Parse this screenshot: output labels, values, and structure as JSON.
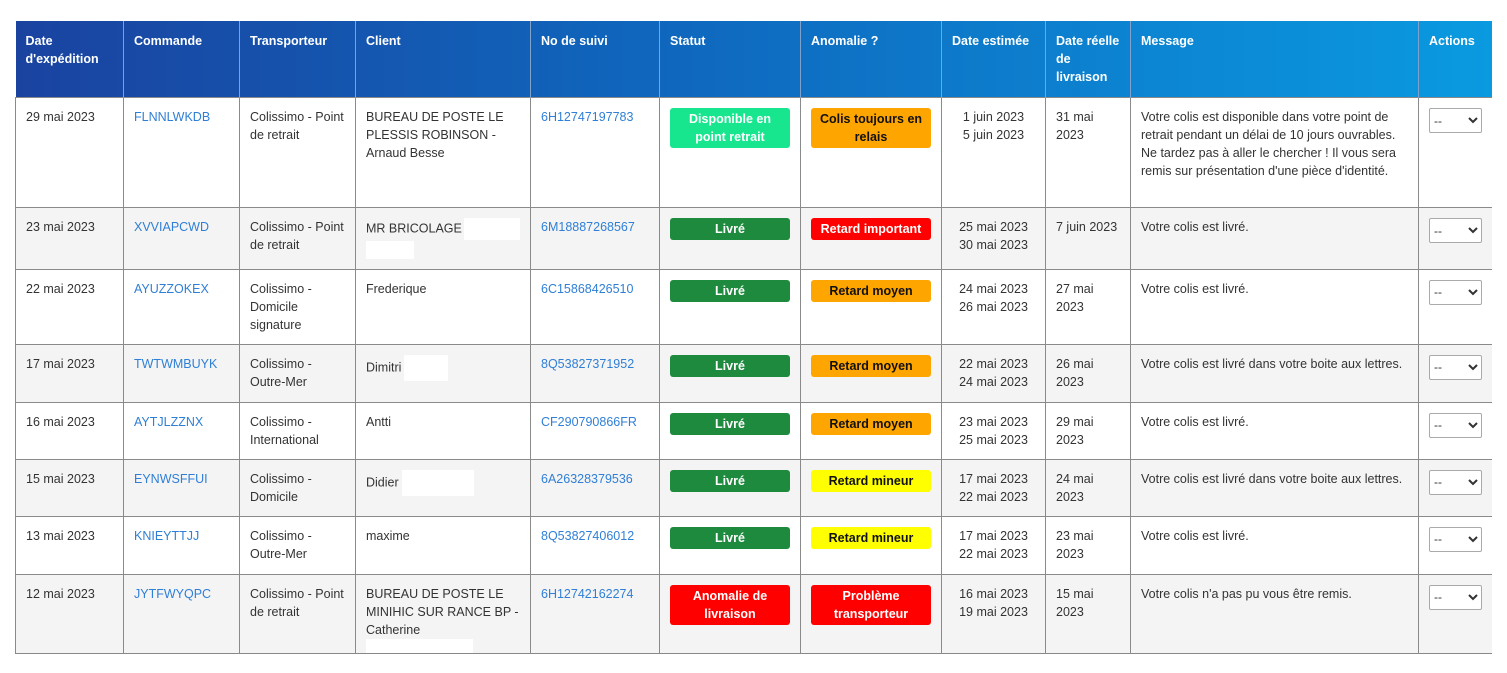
{
  "colors": {
    "header_start": "#1a43a0",
    "header_end": "#0a9ae0",
    "link": "#2f7fd6",
    "status_available": "#17e68e",
    "status_delivered": "#1e8a3e",
    "status_anomaly": "#ff0000",
    "anomaly_orange": "#ffa500",
    "anomaly_red": "#ff0000",
    "anomaly_yellow": "#ffff00"
  },
  "headers": [
    "Date d'expédition",
    "Commande",
    "Transporteur",
    "Client",
    "No de suivi",
    "Statut",
    "Anomalie ?",
    "Date estimée",
    "Date réelle de livraison",
    "Message",
    "Actions"
  ],
  "rows": [
    {
      "date": "29 mai 2023",
      "order": "FLNNLWKDB",
      "carrier": "Colissimo - Point de retrait",
      "client": "BUREAU DE POSTE LE PLESSIS ROBINSON - Arnaud Besse",
      "redact": 0,
      "tracking": "6H12747197783",
      "status": "Disponible en point retrait",
      "status_color": "#17e68e",
      "status_text_color": "#fff",
      "anomaly": "Colis toujours en relais",
      "anomaly_color": "#ffa500",
      "anomaly_text_color": "#111",
      "est1": "1 juin 2023",
      "est2": "5 juin 2023",
      "real": "31 mai 2023",
      "message": "Votre colis est disponible dans votre point de retrait pendant un délai de 10 jours ouvrables. Ne tardez pas à aller le chercher ! Il vous sera remis sur présentation d'une pièce d'identité.",
      "action": "--",
      "h": 89
    },
    {
      "date": "23 mai 2023",
      "order": "XVVIAPCWD",
      "carrier": "Colissimo - Point de retrait",
      "client": "MR BRICOLAGE",
      "redact": 1,
      "tracking": "6M18887268567",
      "status": "Livré",
      "status_color": "#1e8a3e",
      "status_text_color": "#fff",
      "anomaly": "Retard important",
      "anomaly_color": "#ff0000",
      "anomaly_text_color": "#fff",
      "est1": "25 mai 2023",
      "est2": "30 mai 2023",
      "real": "7 juin 2023",
      "message": "Votre colis est livré.",
      "action": "--",
      "h": 36
    },
    {
      "date": "22 mai 2023",
      "order": "AYUZZOKEX",
      "carrier": "Colissimo - Domicile signature",
      "client": "Frederique",
      "redact": 0,
      "tracking": "6C15868426510",
      "status": "Livré",
      "status_color": "#1e8a3e",
      "status_text_color": "#fff",
      "anomaly": "Retard moyen",
      "anomaly_color": "#ffa500",
      "anomaly_text_color": "#111",
      "est1": "24 mai 2023",
      "est2": "26 mai 2023",
      "real": "27 mai 2023",
      "message": "Votre colis est livré.",
      "action": "--",
      "h": 54
    },
    {
      "date": "17 mai 2023",
      "order": "TWTWMBUYK",
      "carrier": "Colissimo - Outre-Mer",
      "client": "Dimitri",
      "redact": 2,
      "tracking": "8Q53827371952",
      "status": "Livré",
      "status_color": "#1e8a3e",
      "status_text_color": "#fff",
      "anomaly": "Retard moyen",
      "anomaly_color": "#ffa500",
      "anomaly_text_color": "#111",
      "est1": "22 mai 2023",
      "est2": "24 mai 2023",
      "real": "26 mai 2023",
      "message": "Votre colis est livré dans votre boite aux lettres.",
      "action": "--",
      "h": 37
    },
    {
      "date": "16 mai 2023",
      "order": "AYTJLZZNX",
      "carrier": "Colissimo - International",
      "client": "Antti",
      "redact": 0,
      "tracking": "CF290790866FR",
      "status": "Livré",
      "status_color": "#1e8a3e",
      "status_text_color": "#fff",
      "anomaly": "Retard moyen",
      "anomaly_color": "#ffa500",
      "anomaly_text_color": "#111",
      "est1": "23 mai 2023",
      "est2": "25 mai 2023",
      "real": "29 mai 2023",
      "message": "Votre colis est livré.",
      "action": "--",
      "h": 36
    },
    {
      "date": "15 mai 2023",
      "order": "EYNWSFFUI",
      "carrier": "Colissimo - Domicile",
      "client": "Didier",
      "redact": 3,
      "tracking": "6A26328379536",
      "status": "Livré",
      "status_color": "#1e8a3e",
      "status_text_color": "#fff",
      "anomaly": "Retard mineur",
      "anomaly_color": "#ffff00",
      "anomaly_text_color": "#111",
      "est1": "17 mai 2023",
      "est2": "22 mai 2023",
      "real": "24 mai 2023",
      "message": "Votre colis est livré dans votre boite aux lettres.",
      "action": "--",
      "h": 36
    },
    {
      "date": "13 mai 2023",
      "order": "KNIEYTTJJ",
      "carrier": "Colissimo - Outre-Mer",
      "client": "maxime",
      "redact": 0,
      "tracking": "8Q53827406012",
      "status": "Livré",
      "status_color": "#1e8a3e",
      "status_text_color": "#fff",
      "anomaly": "Retard mineur",
      "anomaly_color": "#ffff00",
      "anomaly_text_color": "#111",
      "est1": "17 mai 2023",
      "est2": "22 mai 2023",
      "real": "23 mai 2023",
      "message": "Votre colis est livré.",
      "action": "--",
      "h": 37
    },
    {
      "date": "12 mai 2023",
      "order": "JYTFWYQPC",
      "carrier": "Colissimo - Point de retrait",
      "client": "BUREAU DE POSTE LE MINIHIC SUR RANCE BP - Catherine",
      "redact": 4,
      "tracking": "6H12742162274",
      "status": "Anomalie de livraison",
      "status_color": "#ff0000",
      "status_text_color": "#fff",
      "anomaly": "Problème transporteur",
      "anomaly_color": "#ff0000",
      "anomaly_text_color": "#fff",
      "est1": "16 mai 2023",
      "est2": "19 mai 2023",
      "real": "15 mai 2023",
      "message": "Votre colis n'a pas pu vous être remis.",
      "action": "--",
      "h": 72
    }
  ]
}
